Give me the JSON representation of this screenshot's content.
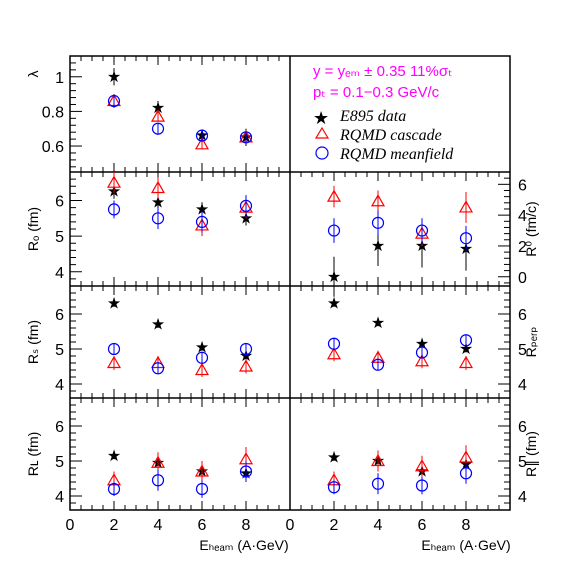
{
  "legend": {
    "cut_line1": "y = yₑₘ ± 0.35   11%σₜ",
    "cut_line2": "pₜ = 0.1−0.3 GeV/c",
    "entries": [
      {
        "label": "E895 data",
        "marker": "star",
        "color": "#000000"
      },
      {
        "label": "RQMD cascade",
        "marker": "triangle",
        "color": "#ff0000"
      },
      {
        "label": "RQMD meanfield",
        "marker": "circle",
        "color": "#0000ff"
      }
    ]
  },
  "chart_data": {
    "type": "scatter",
    "grid": false,
    "x": [
      2,
      4,
      6,
      8
    ],
    "xlabel": "Eₕₑₐₘ (A·GeV)",
    "x_ticks": [
      0,
      2,
      4,
      6,
      8
    ],
    "xlim": [
      0,
      10
    ],
    "panels": [
      {
        "id": "lambda",
        "ylabel": "λ",
        "ylabel_side": "left",
        "ylim": [
          0.45,
          1.12
        ],
        "y_ticks": [
          0.6,
          0.8,
          1
        ],
        "y_tick_labels": [
          "0.6",
          "0.8",
          "1"
        ],
        "series": [
          {
            "name": "E895 data",
            "values": [
              1.0,
              0.82,
              0.66,
              0.65
            ],
            "errors": [
              0.05,
              0.04,
              0.03,
              0.05
            ]
          },
          {
            "name": "RQMD cascade",
            "values": [
              0.86,
              0.77,
              0.61,
              0.65
            ],
            "errors": [
              0.04,
              0.03,
              0.03,
              0.02
            ]
          },
          {
            "name": "RQMD meanfield",
            "values": [
              0.86,
              0.7,
              0.66,
              0.65
            ],
            "errors": [
              0.04,
              0.03,
              0.03,
              0.02
            ]
          }
        ]
      },
      {
        "id": "R_o",
        "ylabel": "Rₒ (fm)",
        "ylabel_side": "left",
        "ylim": [
          3.6,
          6.8
        ],
        "y_ticks": [
          4,
          5,
          6
        ],
        "y_tick_labels": [
          "4",
          "5",
          "6"
        ],
        "series": [
          {
            "name": "E895 data",
            "values": [
              6.25,
              5.95,
              5.75,
              5.5
            ],
            "errors": [
              0.2,
              0.2,
              0.2,
              0.2
            ]
          },
          {
            "name": "RQMD cascade",
            "values": [
              6.5,
              6.35,
              5.3,
              5.8
            ],
            "errors": [
              0.3,
              0.3,
              0.3,
              0.3
            ]
          },
          {
            "name": "RQMD meanfield",
            "values": [
              5.75,
              5.5,
              5.4,
              5.85
            ],
            "errors": [
              0.25,
              0.3,
              0.3,
              0.3
            ]
          }
        ]
      },
      {
        "id": "R_0",
        "ylabel": "R⁰ (fm/c)",
        "ylabel_side": "right",
        "ylim": [
          -0.6,
          6.8
        ],
        "y_ticks": [
          0,
          2,
          4,
          6
        ],
        "y_tick_labels": [
          "0",
          "2",
          "4",
          "6"
        ],
        "series": [
          {
            "name": "E895 data",
            "values": [
              0.0,
              2.0,
              2.0,
              1.8
            ],
            "errors": [
              1.3,
              1.3,
              1.4,
              1.4
            ]
          },
          {
            "name": "RQMD cascade",
            "values": [
              5.2,
              4.9,
              2.8,
              4.5
            ],
            "errors": [
              0.7,
              0.7,
              0.8,
              1.0
            ]
          },
          {
            "name": "RQMD meanfield",
            "values": [
              3.0,
              3.5,
              3.0,
              2.5
            ],
            "errors": [
              0.8,
              0.8,
              0.8,
              0.8
            ]
          }
        ]
      },
      {
        "id": "R_s",
        "ylabel": "Rₛ (fm)",
        "ylabel_side": "left",
        "ylim": [
          3.6,
          6.8
        ],
        "y_ticks": [
          4,
          5,
          6
        ],
        "y_tick_labels": [
          "4",
          "5",
          "6"
        ],
        "series": [
          {
            "name": "E895 data",
            "values": [
              6.3,
              5.7,
              5.05,
              4.8
            ],
            "errors": [
              0.1,
              0.1,
              0.1,
              0.1
            ]
          },
          {
            "name": "RQMD cascade",
            "values": [
              4.6,
              4.6,
              4.4,
              4.5
            ],
            "errors": [
              0.2,
              0.2,
              0.2,
              0.2
            ]
          },
          {
            "name": "RQMD meanfield",
            "values": [
              5.0,
              4.45,
              4.75,
              5.0
            ],
            "errors": [
              0.15,
              0.15,
              0.15,
              0.15
            ]
          }
        ]
      },
      {
        "id": "R_perp",
        "ylabel": "Rₚₑᵣₚ",
        "ylabel_side": "right",
        "ylim": [
          3.6,
          6.8
        ],
        "y_ticks": [
          4,
          5,
          6
        ],
        "y_tick_labels": [
          "4",
          "5",
          "6"
        ],
        "series": [
          {
            "name": "E895 data",
            "values": [
              6.3,
              5.75,
              5.15,
              5.0
            ],
            "errors": [
              0.1,
              0.1,
              0.1,
              0.1
            ]
          },
          {
            "name": "RQMD cascade",
            "values": [
              4.85,
              4.75,
              4.65,
              4.6
            ],
            "errors": [
              0.2,
              0.2,
              0.2,
              0.2
            ]
          },
          {
            "name": "RQMD meanfield",
            "values": [
              5.15,
              4.55,
              4.9,
              5.25
            ],
            "errors": [
              0.15,
              0.15,
              0.15,
              0.15
            ]
          }
        ]
      },
      {
        "id": "R_L",
        "ylabel": "Rʟ (fm)",
        "ylabel_side": "left",
        "ylim": [
          3.6,
          6.8
        ],
        "y_ticks": [
          4,
          5,
          6
        ],
        "y_tick_labels": [
          "4",
          "5",
          "6"
        ],
        "series": [
          {
            "name": "E895 data",
            "values": [
              5.15,
              4.95,
              4.7,
              4.65
            ],
            "errors": [
              0.1,
              0.1,
              0.1,
              0.1
            ]
          },
          {
            "name": "RQMD cascade",
            "values": [
              4.45,
              4.95,
              4.7,
              5.05
            ],
            "errors": [
              0.25,
              0.3,
              0.3,
              0.35
            ]
          },
          {
            "name": "RQMD meanfield",
            "values": [
              4.2,
              4.45,
              4.2,
              4.7
            ],
            "errors": [
              0.2,
              0.3,
              0.25,
              0.3
            ]
          }
        ]
      },
      {
        "id": "R_par",
        "ylabel": "R∥ (fm)",
        "ylabel_side": "right",
        "ylim": [
          3.6,
          6.8
        ],
        "y_ticks": [
          4,
          5,
          6
        ],
        "y_tick_labels": [
          "4",
          "5",
          "6"
        ],
        "series": [
          {
            "name": "E895 data",
            "values": [
              5.1,
              5.0,
              4.7,
              4.9
            ],
            "errors": [
              0.1,
              0.1,
              0.1,
              0.1
            ]
          },
          {
            "name": "RQMD cascade",
            "values": [
              4.45,
              5.0,
              4.85,
              5.1
            ],
            "errors": [
              0.25,
              0.3,
              0.3,
              0.35
            ]
          },
          {
            "name": "RQMD meanfield",
            "values": [
              4.25,
              4.35,
              4.3,
              4.65
            ],
            "errors": [
              0.2,
              0.3,
              0.25,
              0.3
            ]
          }
        ]
      }
    ]
  }
}
